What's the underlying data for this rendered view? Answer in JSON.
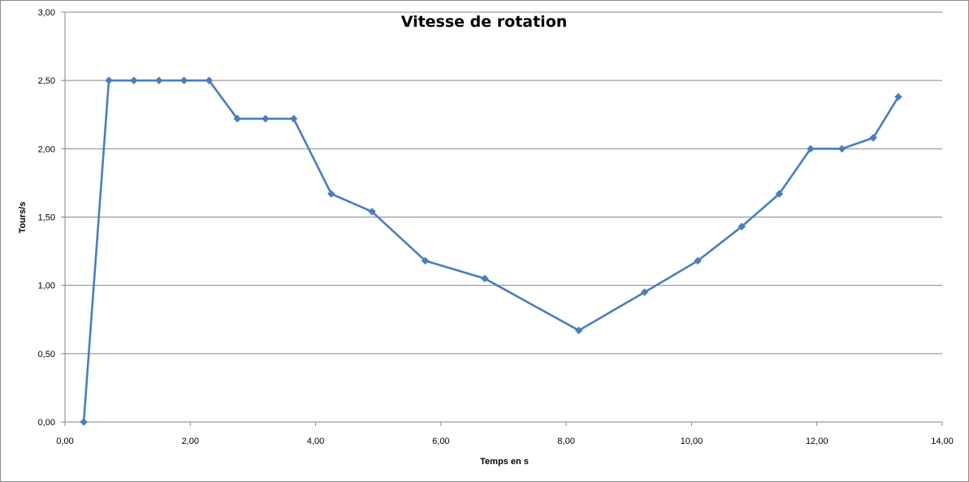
{
  "chart_data": {
    "type": "line",
    "title": "Vitesse de rotation",
    "xlabel": "Temps en s",
    "ylabel": "Tours/s",
    "xlim": [
      0,
      14
    ],
    "ylim": [
      0,
      3
    ],
    "x_ticks": [
      "0,00",
      "2,00",
      "4,00",
      "6,00",
      "8,00",
      "10,00",
      "12,00",
      "14,00"
    ],
    "y_ticks": [
      "0,00",
      "0,50",
      "1,00",
      "1,50",
      "2,00",
      "2,50",
      "3,00"
    ],
    "grid": "horizontal",
    "legend": "none",
    "series": [
      {
        "color": "#4a7ebb",
        "marker": "diamond",
        "points": [
          {
            "x": 0.3,
            "y": 0.0
          },
          {
            "x": 0.7,
            "y": 2.5
          },
          {
            "x": 1.1,
            "y": 2.5
          },
          {
            "x": 1.5,
            "y": 2.5
          },
          {
            "x": 1.9,
            "y": 2.5
          },
          {
            "x": 2.3,
            "y": 2.5
          },
          {
            "x": 2.75,
            "y": 2.22
          },
          {
            "x": 3.2,
            "y": 2.22
          },
          {
            "x": 3.65,
            "y": 2.22
          },
          {
            "x": 4.25,
            "y": 1.67
          },
          {
            "x": 4.9,
            "y": 1.54
          },
          {
            "x": 5.75,
            "y": 1.18
          },
          {
            "x": 6.7,
            "y": 1.05
          },
          {
            "x": 8.2,
            "y": 0.67
          },
          {
            "x": 9.25,
            "y": 0.95
          },
          {
            "x": 10.1,
            "y": 1.18
          },
          {
            "x": 10.8,
            "y": 1.43
          },
          {
            "x": 11.4,
            "y": 1.67
          },
          {
            "x": 11.9,
            "y": 2.0
          },
          {
            "x": 12.4,
            "y": 2.0
          },
          {
            "x": 12.9,
            "y": 2.08
          },
          {
            "x": 13.3,
            "y": 2.38
          }
        ]
      }
    ]
  }
}
